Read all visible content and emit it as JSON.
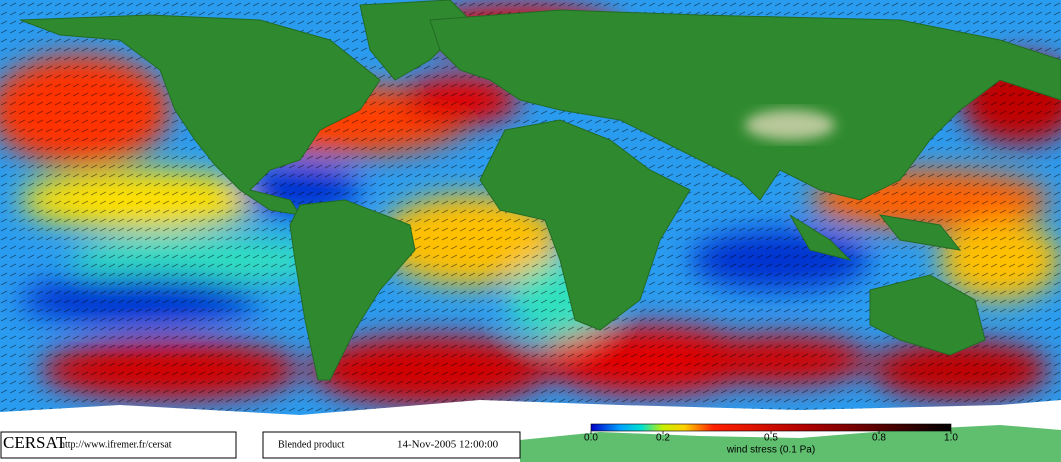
{
  "footer": {
    "logo": "CERSAT",
    "url": "http://www.ifremer.fr/cersat",
    "product": "Blended product",
    "date": "14-Nov-2005 12:00:00"
  },
  "colorbar": {
    "label": "wind stress (0.1 Pa)",
    "range": [
      0,
      1
    ],
    "ticks": [
      {
        "value": 0,
        "label": "0.0"
      },
      0.2,
      0.5,
      0.8,
      {
        "value": 1,
        "label": "1.0"
      }
    ]
  }
}
